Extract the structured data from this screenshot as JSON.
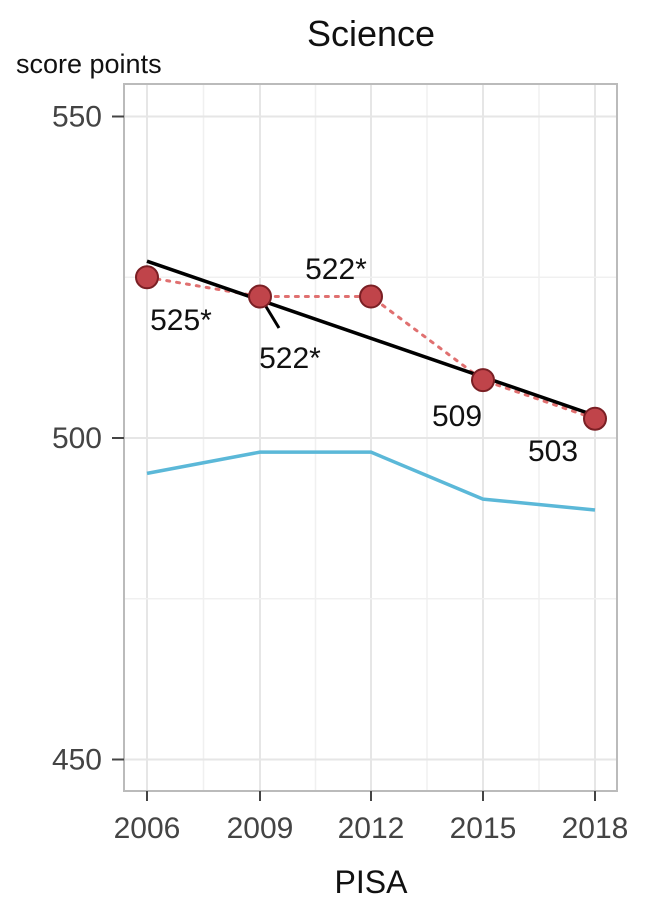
{
  "chart_data": {
    "type": "line",
    "title": "Science",
    "ylabel": "score points",
    "xlabel": "PISA",
    "ylim": [
      450,
      550
    ],
    "y_ticks": [
      450,
      500,
      550
    ],
    "x": [
      2006,
      2009,
      2012,
      2015,
      2018
    ],
    "x_tick_labels": [
      "2006",
      "2009",
      "2012",
      "2015",
      "2018"
    ],
    "grid": true,
    "series": [
      {
        "style": "points-dotted",
        "values": [
          525,
          522,
          522,
          509,
          503
        ],
        "labels": [
          "525*",
          "522*",
          "522*",
          "509",
          "503"
        ],
        "color": "#c0444a",
        "marker_fill": "#c0444a",
        "line_color": "#e07070"
      },
      {
        "style": "trend-line",
        "values_at_ends": [
          527.5,
          503.5
        ],
        "color": "#000000"
      },
      {
        "style": "line",
        "values": [
          494.5,
          497.8,
          497.8,
          490.5,
          488.8
        ],
        "color": "#5bb8d8"
      }
    ],
    "colors": {
      "grid": "#e6e6e6",
      "panel_border": "#bbbbbb",
      "tick_text": "#444444"
    }
  }
}
